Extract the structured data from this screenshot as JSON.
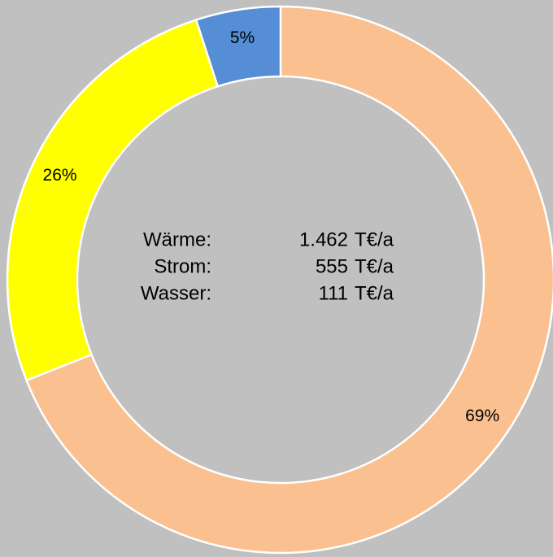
{
  "chart_data": {
    "type": "donut",
    "categories": [
      null,
      null,
      null
    ],
    "values": [
      69,
      26,
      5
    ],
    "value_labels": [
      "69%",
      "26%",
      "5%"
    ],
    "colors": [
      "#fac090",
      "#ffff00",
      "#558ed5"
    ],
    "annotations": [
      {
        "label": "Wärme:",
        "value": "1.462",
        "unit": "T€/a"
      },
      {
        "label": "Strom:",
        "value": "555",
        "unit": "T€/a"
      },
      {
        "label": "Wasser:",
        "value": "111",
        "unit": "T€/a"
      }
    ]
  }
}
